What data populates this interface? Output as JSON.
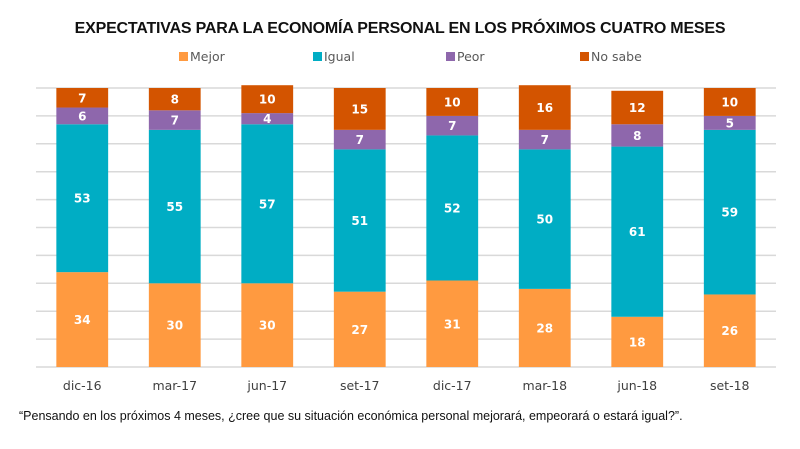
{
  "chart_data": {
    "type": "bar",
    "stacked": true,
    "percent_stacked": true,
    "title": "EXPECTATIVAS PARA LA ECONOMÍA PERSONAL EN LOS PRÓXIMOS CUATRO MESES",
    "xlabel": "",
    "ylabel": "",
    "ylim": [
      0,
      100
    ],
    "grid": true,
    "legend_position": "top",
    "categories": [
      "dic-16",
      "mar-17",
      "jun-17",
      "set-17",
      "dic-17",
      "mar-18",
      "jun-18",
      "set-18"
    ],
    "series": [
      {
        "name": "Mejor",
        "color": "#FF9A40",
        "values": [
          34,
          30,
          30,
          27,
          31,
          28,
          18,
          26
        ]
      },
      {
        "name": "Igual",
        "color": "#00ADC4",
        "values": [
          53,
          55,
          57,
          51,
          52,
          50,
          61,
          59
        ]
      },
      {
        "name": "Peor",
        "color": "#8E67AC",
        "values": [
          6,
          7,
          4,
          7,
          7,
          7,
          8,
          5
        ]
      },
      {
        "name": "No sabe",
        "color": "#D35400",
        "values": [
          7,
          8,
          10,
          15,
          10,
          16,
          12,
          10
        ]
      }
    ],
    "footnote": "“Pensando en los próximos 4  meses, ¿cree que su situación económica personal mejorará, empeorará o estará igual?”."
  }
}
